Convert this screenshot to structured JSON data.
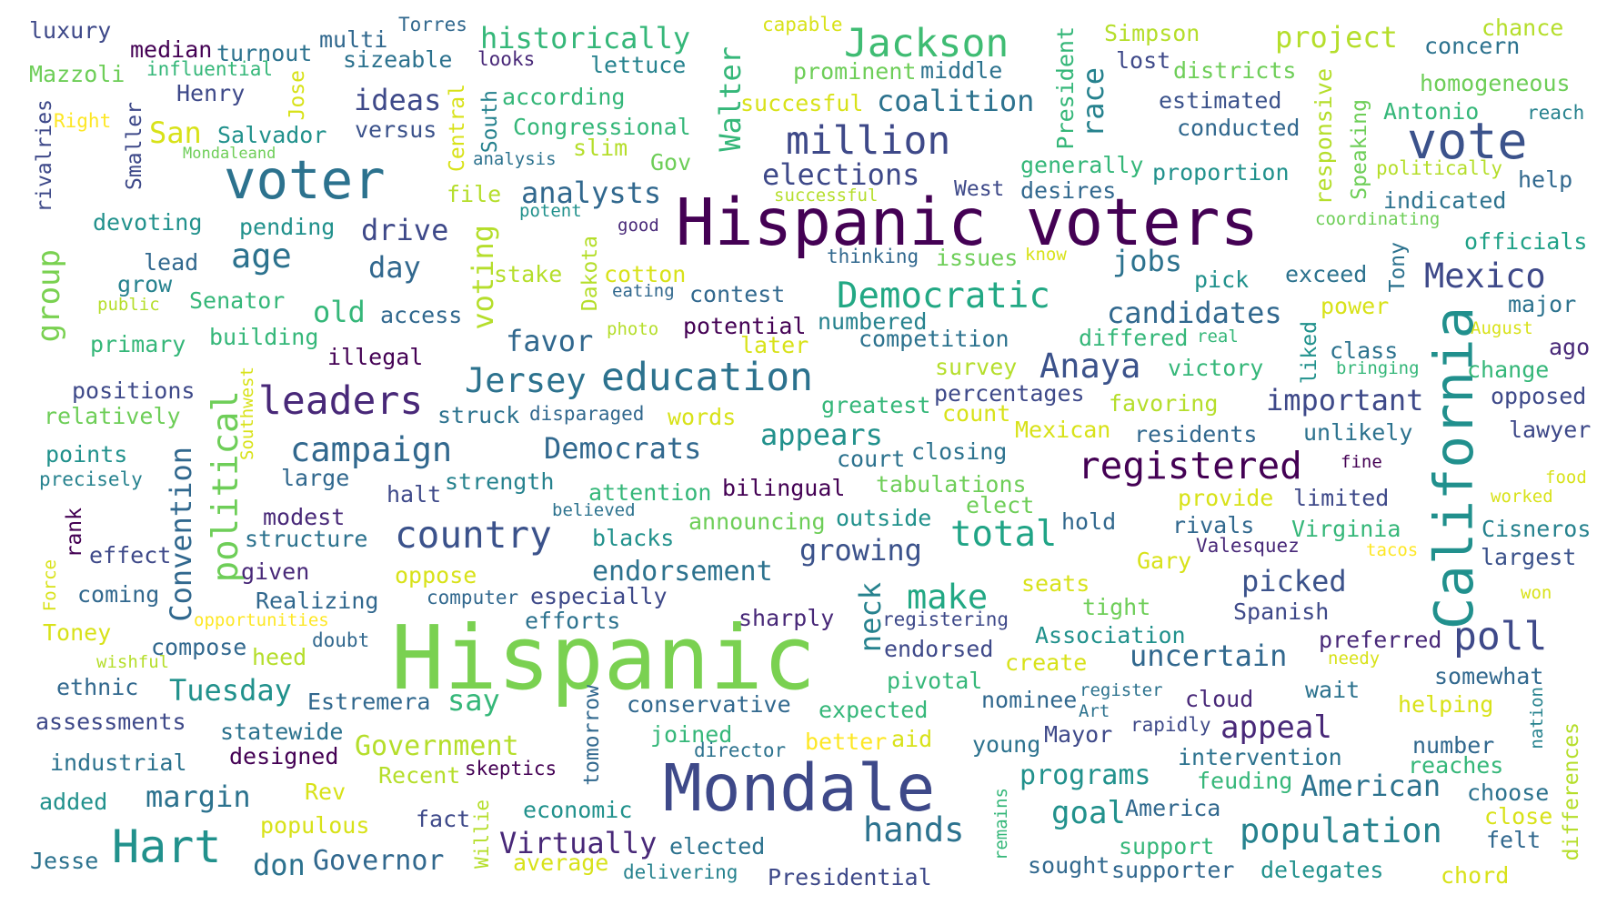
{
  "colors": {
    "background": "#ffffff",
    "viridis": [
      "#440154",
      "#482878",
      "#3e4989",
      "#31688e",
      "#26828e",
      "#1f9e89",
      "#35b779",
      "#6ece58",
      "#b5de2b",
      "#fde725"
    ]
  },
  "words": [
    {
      "text": "Hispanic voters",
      "color": "#440154"
    },
    {
      "text": "Hispanic",
      "color": "#7ad151"
    },
    {
      "text": "Mondale",
      "color": "#3e4989"
    },
    {
      "text": "voter",
      "color": "#2c728e"
    },
    {
      "text": "California",
      "color": "#21908d"
    },
    {
      "text": "vote",
      "color": "#3b528b"
    },
    {
      "text": "Hart",
      "color": "#21918c"
    },
    {
      "text": "million",
      "color": "#3e4989"
    },
    {
      "text": "Jackson",
      "color": "#3fbc73"
    },
    {
      "text": "education",
      "color": "#2c728e"
    },
    {
      "text": "leaders",
      "color": "#482878"
    },
    {
      "text": "registered",
      "color": "#440154"
    },
    {
      "text": "country",
      "color": "#3b528b"
    },
    {
      "text": "Democratic",
      "color": "#22a884"
    },
    {
      "text": "poll",
      "color": "#3e4989"
    },
    {
      "text": "political",
      "color": "#6ece58"
    },
    {
      "text": "campaign",
      "color": "#31688e"
    },
    {
      "text": "population",
      "color": "#26828e"
    },
    {
      "text": "Mexico",
      "color": "#3e4989"
    },
    {
      "text": "Anaya",
      "color": "#3b528b"
    },
    {
      "text": "Jersey",
      "color": "#2c728e"
    },
    {
      "text": "elections",
      "color": "#3e4989"
    },
    {
      "text": "total",
      "color": "#20a486"
    },
    {
      "text": "hands",
      "color": "#2c728e"
    },
    {
      "text": "Virtually",
      "color": "#482878"
    },
    {
      "text": "important",
      "color": "#3e4989"
    },
    {
      "text": "make",
      "color": "#22a884"
    },
    {
      "text": "appears",
      "color": "#21918c"
    },
    {
      "text": "candidates",
      "color": "#31688e"
    },
    {
      "text": "Democrats",
      "color": "#31688e"
    },
    {
      "text": "coalition",
      "color": "#2c728e"
    },
    {
      "text": "uncertain",
      "color": "#31688e"
    },
    {
      "text": "American",
      "color": "#2c728e"
    },
    {
      "text": "picked",
      "color": "#3b528b"
    },
    {
      "text": "endorsement",
      "color": "#2c728e"
    },
    {
      "text": "growing",
      "color": "#3b528b"
    },
    {
      "text": "programs",
      "color": "#21918c"
    },
    {
      "text": "Government",
      "color": "#b5de2b"
    },
    {
      "text": "analysts",
      "color": "#31688e"
    },
    {
      "text": "Convention",
      "color": "#31688e"
    },
    {
      "text": "age",
      "color": "#2c728e"
    },
    {
      "text": "group",
      "color": "#7ad151"
    },
    {
      "text": "Walter",
      "color": "#35b779"
    },
    {
      "text": "race",
      "color": "#26828e"
    },
    {
      "text": "neck",
      "color": "#26828e"
    },
    {
      "text": "historically",
      "color": "#35b779"
    },
    {
      "text": "ideas",
      "color": "#3e4989"
    },
    {
      "text": "drive",
      "color": "#3e4989"
    },
    {
      "text": "day",
      "color": "#31688e"
    },
    {
      "text": "jobs",
      "color": "#2c728e"
    },
    {
      "text": "favor",
      "color": "#31688e"
    },
    {
      "text": "old",
      "color": "#35b779"
    },
    {
      "text": "Tuesday",
      "color": "#21918c"
    },
    {
      "text": "margin",
      "color": "#2c728e"
    },
    {
      "text": "say",
      "color": "#35b779"
    },
    {
      "text": "goal",
      "color": "#21918c"
    },
    {
      "text": "Governor",
      "color": "#31688e"
    },
    {
      "text": "appeal",
      "color": "#482878"
    },
    {
      "text": "project",
      "color": "#b5de2b"
    },
    {
      "text": "voting",
      "color": "#b5de2b"
    },
    {
      "text": "don",
      "color": "#2c728e"
    },
    {
      "text": "San",
      "color": "#d8e219"
    },
    {
      "text": "President",
      "color": "#35b779"
    },
    {
      "text": "responsive",
      "color": "#b5de2b"
    },
    {
      "text": "Salvador",
      "color": "#21918c"
    },
    {
      "text": "Congressional",
      "color": "#35b779"
    },
    {
      "text": "according",
      "color": "#35b779"
    },
    {
      "text": "succesful",
      "color": "#d8e219"
    },
    {
      "text": "estimated",
      "color": "#3b528b"
    },
    {
      "text": "Antonio",
      "color": "#35b779"
    },
    {
      "text": "homogeneous",
      "color": "#6ece58"
    },
    {
      "text": "districts",
      "color": "#6ece58"
    },
    {
      "text": "prominent",
      "color": "#6ece58"
    },
    {
      "text": "middle",
      "color": "#2c728e"
    },
    {
      "text": "conducted",
      "color": "#31688e"
    },
    {
      "text": "proportion",
      "color": "#21918c"
    },
    {
      "text": "generally",
      "color": "#35b779"
    },
    {
      "text": "indicated",
      "color": "#2c728e"
    },
    {
      "text": "desires",
      "color": "#31688e"
    },
    {
      "text": "West",
      "color": "#3e4989"
    },
    {
      "text": "successful",
      "color": "#b5de2b"
    },
    {
      "text": "Speaking",
      "color": "#6ece58"
    },
    {
      "text": "politically",
      "color": "#b5de2b"
    },
    {
      "text": "coordinating",
      "color": "#6ece58"
    },
    {
      "text": "officials",
      "color": "#1fa187"
    },
    {
      "text": "help",
      "color": "#31688e"
    },
    {
      "text": "reach",
      "color": "#26828e"
    },
    {
      "text": "concern",
      "color": "#2c728e"
    },
    {
      "text": "chance",
      "color": "#b5de2b"
    },
    {
      "text": "Simpson",
      "color": "#b5de2b"
    },
    {
      "text": "lost",
      "color": "#3e4989"
    },
    {
      "text": "capable",
      "color": "#d8e219"
    },
    {
      "text": "Torres",
      "color": "#31688e"
    },
    {
      "text": "multi",
      "color": "#31688e"
    },
    {
      "text": "sizeable",
      "color": "#2c728e"
    },
    {
      "text": "looks",
      "color": "#482878"
    },
    {
      "text": "lettuce",
      "color": "#26828e"
    },
    {
      "text": "luxury",
      "color": "#3e4989"
    },
    {
      "text": "median",
      "color": "#440154"
    },
    {
      "text": "turnout",
      "color": "#2c728e"
    },
    {
      "text": "Mazzoli",
      "color": "#6ece58"
    },
    {
      "text": "influential",
      "color": "#35b779"
    },
    {
      "text": "Jose",
      "color": "#d8e219"
    },
    {
      "text": "Henry",
      "color": "#3e4989"
    },
    {
      "text": "Right",
      "color": "#fde725"
    },
    {
      "text": "Smaller",
      "color": "#3e4989"
    },
    {
      "text": "rivalries",
      "color": "#3e4989"
    },
    {
      "text": "Mondaleand",
      "color": "#6ece58"
    },
    {
      "text": "versus",
      "color": "#3b528b"
    },
    {
      "text": "South",
      "color": "#26828e"
    },
    {
      "text": "Central",
      "color": "#d8e219"
    },
    {
      "text": "slim",
      "color": "#b5de2b"
    },
    {
      "text": "analysis",
      "color": "#2c728e"
    },
    {
      "text": "Gov",
      "color": "#6ece58"
    },
    {
      "text": "file",
      "color": "#b5de2b"
    },
    {
      "text": "potent",
      "color": "#21918c"
    },
    {
      "text": "good",
      "color": "#482878"
    },
    {
      "text": "devoting",
      "color": "#21918c"
    },
    {
      "text": "pending",
      "color": "#21918c"
    },
    {
      "text": "lead",
      "color": "#31688e"
    },
    {
      "text": "grow",
      "color": "#26828e"
    },
    {
      "text": "public",
      "color": "#b5de2b"
    },
    {
      "text": "Senator",
      "color": "#35b779"
    },
    {
      "text": "primary",
      "color": "#35b779"
    },
    {
      "text": "building",
      "color": "#35b779"
    },
    {
      "text": "illegal",
      "color": "#440154"
    },
    {
      "text": "access",
      "color": "#31688e"
    },
    {
      "text": "stake",
      "color": "#b5de2b"
    },
    {
      "text": "cotton",
      "color": "#d8e219"
    },
    {
      "text": "Dakota",
      "color": "#b5de2b"
    },
    {
      "text": "eating",
      "color": "#31688e"
    },
    {
      "text": "contest",
      "color": "#31688e"
    },
    {
      "text": "photo",
      "color": "#b5de2b"
    },
    {
      "text": "potential",
      "color": "#440154"
    },
    {
      "text": "later",
      "color": "#d8e219"
    },
    {
      "text": "numbered",
      "color": "#26828e"
    },
    {
      "text": "competition",
      "color": "#2c728e"
    },
    {
      "text": "thinking",
      "color": "#31688e"
    },
    {
      "text": "issues",
      "color": "#6ece58"
    },
    {
      "text": "know",
      "color": "#d8e219"
    },
    {
      "text": "pick",
      "color": "#21918c"
    },
    {
      "text": "exceed",
      "color": "#2c728e"
    },
    {
      "text": "Tony",
      "color": "#2c728e"
    },
    {
      "text": "power",
      "color": "#d8e219"
    },
    {
      "text": "major",
      "color": "#2c728e"
    },
    {
      "text": "August",
      "color": "#d8e219"
    },
    {
      "text": "ago",
      "color": "#482878"
    },
    {
      "text": "differed",
      "color": "#35b779"
    },
    {
      "text": "real",
      "color": "#35b779"
    },
    {
      "text": "liked",
      "color": "#21918c"
    },
    {
      "text": "class",
      "color": "#2c728e"
    },
    {
      "text": "bringing",
      "color": "#35b779"
    },
    {
      "text": "change",
      "color": "#35b779"
    },
    {
      "text": "survey",
      "color": "#b5de2b"
    },
    {
      "text": "victory",
      "color": "#35b779"
    },
    {
      "text": "positions",
      "color": "#3e4989"
    },
    {
      "text": "relatively",
      "color": "#6ece58"
    },
    {
      "text": "Southwest",
      "color": "#d8e219"
    },
    {
      "text": "struck",
      "color": "#2c728e"
    },
    {
      "text": "disparaged",
      "color": "#31688e"
    },
    {
      "text": "words",
      "color": "#d8e219"
    },
    {
      "text": "greatest",
      "color": "#35b779"
    },
    {
      "text": "percentages",
      "color": "#3e4989"
    },
    {
      "text": "count",
      "color": "#d8e219"
    },
    {
      "text": "favoring",
      "color": "#b5de2b"
    },
    {
      "text": "opposed",
      "color": "#3e4989"
    },
    {
      "text": "Mexican",
      "color": "#d8e219"
    },
    {
      "text": "residents",
      "color": "#31688e"
    },
    {
      "text": "unlikely",
      "color": "#2c728e"
    },
    {
      "text": "lawyer",
      "color": "#3e4989"
    },
    {
      "text": "points",
      "color": "#21918c"
    },
    {
      "text": "precisely",
      "color": "#26828e"
    },
    {
      "text": "large",
      "color": "#31688e"
    },
    {
      "text": "strength",
      "color": "#26828e"
    },
    {
      "text": "court",
      "color": "#2c728e"
    },
    {
      "text": "closing",
      "color": "#2c728e"
    },
    {
      "text": "fine",
      "color": "#440154"
    },
    {
      "text": "food",
      "color": "#d8e219"
    },
    {
      "text": "halt",
      "color": "#3e4989"
    },
    {
      "text": "attention",
      "color": "#35b779"
    },
    {
      "text": "bilingual",
      "color": "#440154"
    },
    {
      "text": "tabulations",
      "color": "#6ece58"
    },
    {
      "text": "provide",
      "color": "#d8e219"
    },
    {
      "text": "limited",
      "color": "#3e4989"
    },
    {
      "text": "worked",
      "color": "#d8e219"
    },
    {
      "text": "rank",
      "color": "#440154"
    },
    {
      "text": "modest",
      "color": "#482878"
    },
    {
      "text": "believed",
      "color": "#2c728e"
    },
    {
      "text": "elect",
      "color": "#6ece58"
    },
    {
      "text": "outside",
      "color": "#21918c"
    },
    {
      "text": "hold",
      "color": "#31688e"
    },
    {
      "text": "rivals",
      "color": "#31688e"
    },
    {
      "text": "Virginia",
      "color": "#35b779"
    },
    {
      "text": "Cisneros",
      "color": "#26828e"
    },
    {
      "text": "structure",
      "color": "#2c728e"
    },
    {
      "text": "announcing",
      "color": "#6ece58"
    },
    {
      "text": "blacks",
      "color": "#21918c"
    },
    {
      "text": "Valesquez",
      "color": "#482878"
    },
    {
      "text": "tacos",
      "color": "#fde725"
    },
    {
      "text": "largest",
      "color": "#3b528b"
    },
    {
      "text": "effect",
      "color": "#3e4989"
    },
    {
      "text": "Force",
      "color": "#d8e219"
    },
    {
      "text": "given",
      "color": "#482878"
    },
    {
      "text": "oppose",
      "color": "#d8e219"
    },
    {
      "text": "seats",
      "color": "#d8e219"
    },
    {
      "text": "Gary",
      "color": "#d8e219"
    },
    {
      "text": "won",
      "color": "#d8e219"
    },
    {
      "text": "coming",
      "color": "#31688e"
    },
    {
      "text": "Realizing",
      "color": "#31688e"
    },
    {
      "text": "computer",
      "color": "#31688e"
    },
    {
      "text": "especially",
      "color": "#3e4989"
    },
    {
      "text": "tight",
      "color": "#6ece58"
    },
    {
      "text": "Spanish",
      "color": "#3e4989"
    },
    {
      "text": "Toney",
      "color": "#d8e219"
    },
    {
      "text": "opportunities",
      "color": "#fde725"
    },
    {
      "text": "efforts",
      "color": "#2c728e"
    },
    {
      "text": "sharply",
      "color": "#482878"
    },
    {
      "text": "registering",
      "color": "#3e4989"
    },
    {
      "text": "Association",
      "color": "#21918c"
    },
    {
      "text": "preferred",
      "color": "#482878"
    },
    {
      "text": "compose",
      "color": "#31688e"
    },
    {
      "text": "doubt",
      "color": "#31688e"
    },
    {
      "text": "endorsed",
      "color": "#3e4989"
    },
    {
      "text": "create",
      "color": "#d8e219"
    },
    {
      "text": "wishful",
      "color": "#b5de2b"
    },
    {
      "text": "heed",
      "color": "#b5de2b"
    },
    {
      "text": "needy",
      "color": "#d8e219"
    },
    {
      "text": "somewhat",
      "color": "#31688e"
    },
    {
      "text": "ethnic",
      "color": "#31688e"
    },
    {
      "text": "Estremera",
      "color": "#31688e"
    },
    {
      "text": "tomorrow",
      "color": "#31688e"
    },
    {
      "text": "conservative",
      "color": "#31688e"
    },
    {
      "text": "pivotal",
      "color": "#35b779"
    },
    {
      "text": "nominee",
      "color": "#31688e"
    },
    {
      "text": "register",
      "color": "#2c728e"
    },
    {
      "text": "cloud",
      "color": "#482878"
    },
    {
      "text": "wait",
      "color": "#2c728e"
    },
    {
      "text": "Art",
      "color": "#2c728e"
    },
    {
      "text": "helping",
      "color": "#d8e219"
    },
    {
      "text": "nation",
      "color": "#26828e"
    },
    {
      "text": "assessments",
      "color": "#3e4989"
    },
    {
      "text": "expected",
      "color": "#35b779"
    },
    {
      "text": "statewide",
      "color": "#2c728e"
    },
    {
      "text": "joined",
      "color": "#35b779"
    },
    {
      "text": "director",
      "color": "#2c728e"
    },
    {
      "text": "better",
      "color": "#fde725"
    },
    {
      "text": "aid",
      "color": "#d8e219"
    },
    {
      "text": "young",
      "color": "#2c728e"
    },
    {
      "text": "Mayor",
      "color": "#3e4989"
    },
    {
      "text": "rapidly",
      "color": "#3e4989"
    },
    {
      "text": "number",
      "color": "#31688e"
    },
    {
      "text": "differences",
      "color": "#b5de2b"
    },
    {
      "text": "industrial",
      "color": "#2c728e"
    },
    {
      "text": "designed",
      "color": "#440154"
    },
    {
      "text": "Recent",
      "color": "#b5de2b"
    },
    {
      "text": "skeptics",
      "color": "#440154"
    },
    {
      "text": "intervention",
      "color": "#2c728e"
    },
    {
      "text": "reaches",
      "color": "#35b779"
    },
    {
      "text": "added",
      "color": "#21918c"
    },
    {
      "text": "Rev",
      "color": "#d8e219"
    },
    {
      "text": "economic",
      "color": "#21918c"
    },
    {
      "text": "feuding",
      "color": "#35b779"
    },
    {
      "text": "choose",
      "color": "#2c728e"
    },
    {
      "text": "America",
      "color": "#31688e"
    },
    {
      "text": "close",
      "color": "#d8e219"
    },
    {
      "text": "populous",
      "color": "#d8e219"
    },
    {
      "text": "fact",
      "color": "#3e4989"
    },
    {
      "text": "Willie",
      "color": "#b5de2b"
    },
    {
      "text": "remains",
      "color": "#35b779"
    },
    {
      "text": "felt",
      "color": "#31688e"
    },
    {
      "text": "support",
      "color": "#35b779"
    },
    {
      "text": "Jesse",
      "color": "#2c728e"
    },
    {
      "text": "average",
      "color": "#d8e219"
    },
    {
      "text": "elected",
      "color": "#2c728e"
    },
    {
      "text": "sought",
      "color": "#31688e"
    },
    {
      "text": "supporter",
      "color": "#31688e"
    },
    {
      "text": "delegates",
      "color": "#21918c"
    },
    {
      "text": "chord",
      "color": "#d8e219"
    },
    {
      "text": "delivering",
      "color": "#26828e"
    },
    {
      "text": "Presidential",
      "color": "#3e4989"
    }
  ]
}
